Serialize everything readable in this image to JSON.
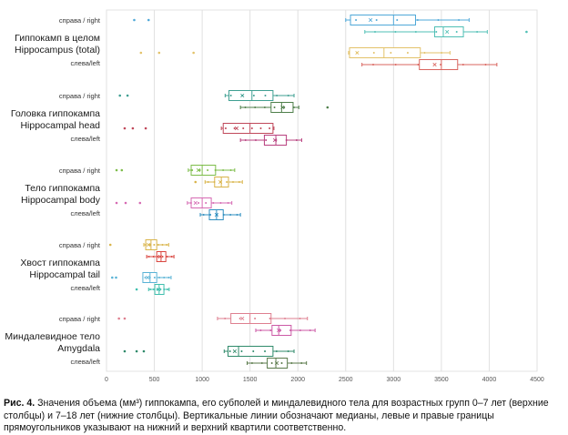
{
  "chart_data": {
    "type": "boxplot-horizontal",
    "title": "",
    "xlabel": "",
    "ylabel": "",
    "xlim": [
      0,
      4500
    ],
    "xticks": [
      0,
      500,
      1000,
      1500,
      2000,
      2500,
      3000,
      3500,
      4000,
      4500
    ],
    "grid": "vertical",
    "groups": [
      {
        "title_ru": "Гиппокамп в целом",
        "title_en": "Hippocampus (total)",
        "right_label": "справа / right",
        "left_label": "слева/left",
        "rows": [
          {
            "side": "right",
            "age": "0–7",
            "color": "#4fa8d8",
            "whisker": [
              2500,
              3790
            ],
            "q1": 2550,
            "median": 3000,
            "q3": 3230,
            "mean": 2760,
            "outliers": [
              290,
              440
            ]
          },
          {
            "side": "right",
            "age": "7–18",
            "color": "#4fbfb5",
            "whisker": [
              2700,
              3980
            ],
            "q1": 3430,
            "median": 3520,
            "q3": 3730,
            "mean": 3560,
            "outliers": [
              4390
            ]
          },
          {
            "side": "left",
            "age": "0–7",
            "color": "#e3c26a",
            "whisker": [
              2530,
              3590
            ],
            "q1": 2540,
            "median": 2900,
            "q3": 3280,
            "mean": 2620,
            "outliers": [
              360,
              550,
              910
            ]
          },
          {
            "side": "left",
            "age": "7–18",
            "color": "#d9655f",
            "whisker": [
              2670,
              4080
            ],
            "q1": 3270,
            "median": 3500,
            "q3": 3670,
            "mean": 3430,
            "outliers": []
          }
        ]
      },
      {
        "title_ru": "Головка гиппокампа",
        "title_en": "Hippocampal head",
        "right_label": "справа / right",
        "left_label": "слева/left",
        "rows": [
          {
            "side": "right",
            "age": "0–7",
            "color": "#3f9f92",
            "whisker": [
              1240,
              1960
            ],
            "q1": 1280,
            "median": 1520,
            "q3": 1740,
            "mean": 1420,
            "outliers": [
              140,
              220
            ]
          },
          {
            "side": "right",
            "age": "7–18",
            "color": "#4f7f4a",
            "whisker": [
              1400,
              2010
            ],
            "q1": 1720,
            "median": 1830,
            "q3": 1950,
            "mean": 1840,
            "outliers": [
              2310
            ]
          },
          {
            "side": "left",
            "age": "0–7",
            "color": "#c0485a",
            "whisker": [
              1200,
              1750
            ],
            "q1": 1220,
            "median": 1500,
            "q3": 1740,
            "mean": 1360,
            "outliers": [
              190,
              275,
              410
            ]
          },
          {
            "side": "left",
            "age": "7–18",
            "color": "#b8407f",
            "whisker": [
              1400,
              2040
            ],
            "q1": 1650,
            "median": 1770,
            "q3": 1880,
            "mean": 1760,
            "outliers": []
          }
        ]
      },
      {
        "title_ru": "Тело гиппокампа",
        "title_en": "Hippocampal body",
        "right_label": "справа / right",
        "left_label": "слева/left",
        "rows": [
          {
            "side": "right",
            "age": "0–7",
            "color": "#7dbd4a",
            "whisker": [
              855,
              1340
            ],
            "q1": 885,
            "median": 1000,
            "q3": 1140,
            "mean": 960,
            "outliers": [
              105,
              160
            ]
          },
          {
            "side": "right",
            "age": "7–18",
            "color": "#d9b44a",
            "whisker": [
              1030,
              1420
            ],
            "q1": 1130,
            "median": 1200,
            "q3": 1275,
            "mean": 1190,
            "outliers": [
              930
            ]
          },
          {
            "side": "left",
            "age": "0–7",
            "color": "#d66ab3",
            "whisker": [
              845,
              1310
            ],
            "q1": 885,
            "median": 1000,
            "q3": 1095,
            "mean": 930,
            "outliers": [
              105,
              200,
              350
            ]
          },
          {
            "side": "left",
            "age": "7–18",
            "color": "#2f8fc0",
            "whisker": [
              980,
              1400
            ],
            "q1": 1075,
            "median": 1150,
            "q3": 1220,
            "mean": 1150,
            "outliers": []
          }
        ]
      },
      {
        "title_ru": "Хвост гиппокампа",
        "title_en": "Hippocampal tail",
        "right_label": "справа / right",
        "left_label": "слева/left",
        "rows": [
          {
            "side": "right",
            "age": "0–7",
            "color": "#d9b44a",
            "whisker": [
              390,
              650
            ],
            "q1": 410,
            "median": 465,
            "q3": 525,
            "mean": 440,
            "outliers": [
              40
            ]
          },
          {
            "side": "right",
            "age": "7–18",
            "color": "#d9453f",
            "whisker": [
              420,
              705
            ],
            "q1": 525,
            "median": 570,
            "q3": 620,
            "mean": 560,
            "outliers": []
          },
          {
            "side": "left",
            "age": "0–7",
            "color": "#5ab3d6",
            "whisker": [
              380,
              675
            ],
            "q1": 380,
            "median": 455,
            "q3": 525,
            "mean": 430,
            "outliers": [
              60,
              100
            ]
          },
          {
            "side": "left",
            "age": "7–18",
            "color": "#3fbfae",
            "whisker": [
              440,
              655
            ],
            "q1": 505,
            "median": 550,
            "q3": 600,
            "mean": 545,
            "outliers": [
              315
            ]
          }
        ]
      },
      {
        "title_ru": "Миндалевидное тело",
        "title_en": "Amygdala",
        "right_label": "справа / right",
        "left_label": "слева/left",
        "rows": [
          {
            "side": "right",
            "age": "0–7",
            "color": "#de7f8f",
            "whisker": [
              1160,
              2100
            ],
            "q1": 1300,
            "median": 1500,
            "q3": 1720,
            "mean": 1420,
            "outliers": [
              130,
              190
            ]
          },
          {
            "side": "right",
            "age": "7–18",
            "color": "#cc5aa6",
            "whisker": [
              1560,
              2180
            ],
            "q1": 1730,
            "median": 1800,
            "q3": 1930,
            "mean": 1800,
            "outliers": []
          },
          {
            "side": "left",
            "age": "0–7",
            "color": "#2f8a6a",
            "whisker": [
              1230,
              1960
            ],
            "q1": 1270,
            "median": 1380,
            "q3": 1740,
            "mean": 1340,
            "outliers": [
              190,
              315,
              390
            ]
          },
          {
            "side": "left",
            "age": "7–18",
            "color": "#5a7a4a",
            "whisker": [
              1470,
              2090
            ],
            "q1": 1680,
            "median": 1770,
            "q3": 1890,
            "mean": 1780,
            "outliers": []
          }
        ]
      }
    ]
  },
  "caption": {
    "label": "Рис. 4.",
    "text": " Значения объема (мм³) гиппокампа, его субполей и миндалевидного тела для возрастных групп 0–7 лет (верхние столбцы) и 7–18 лет (нижние столбцы). Вертикальные линии обозначают медианы, левые и правые границы прямоугольников указывают на нижний и верхний квартили соответственно."
  }
}
